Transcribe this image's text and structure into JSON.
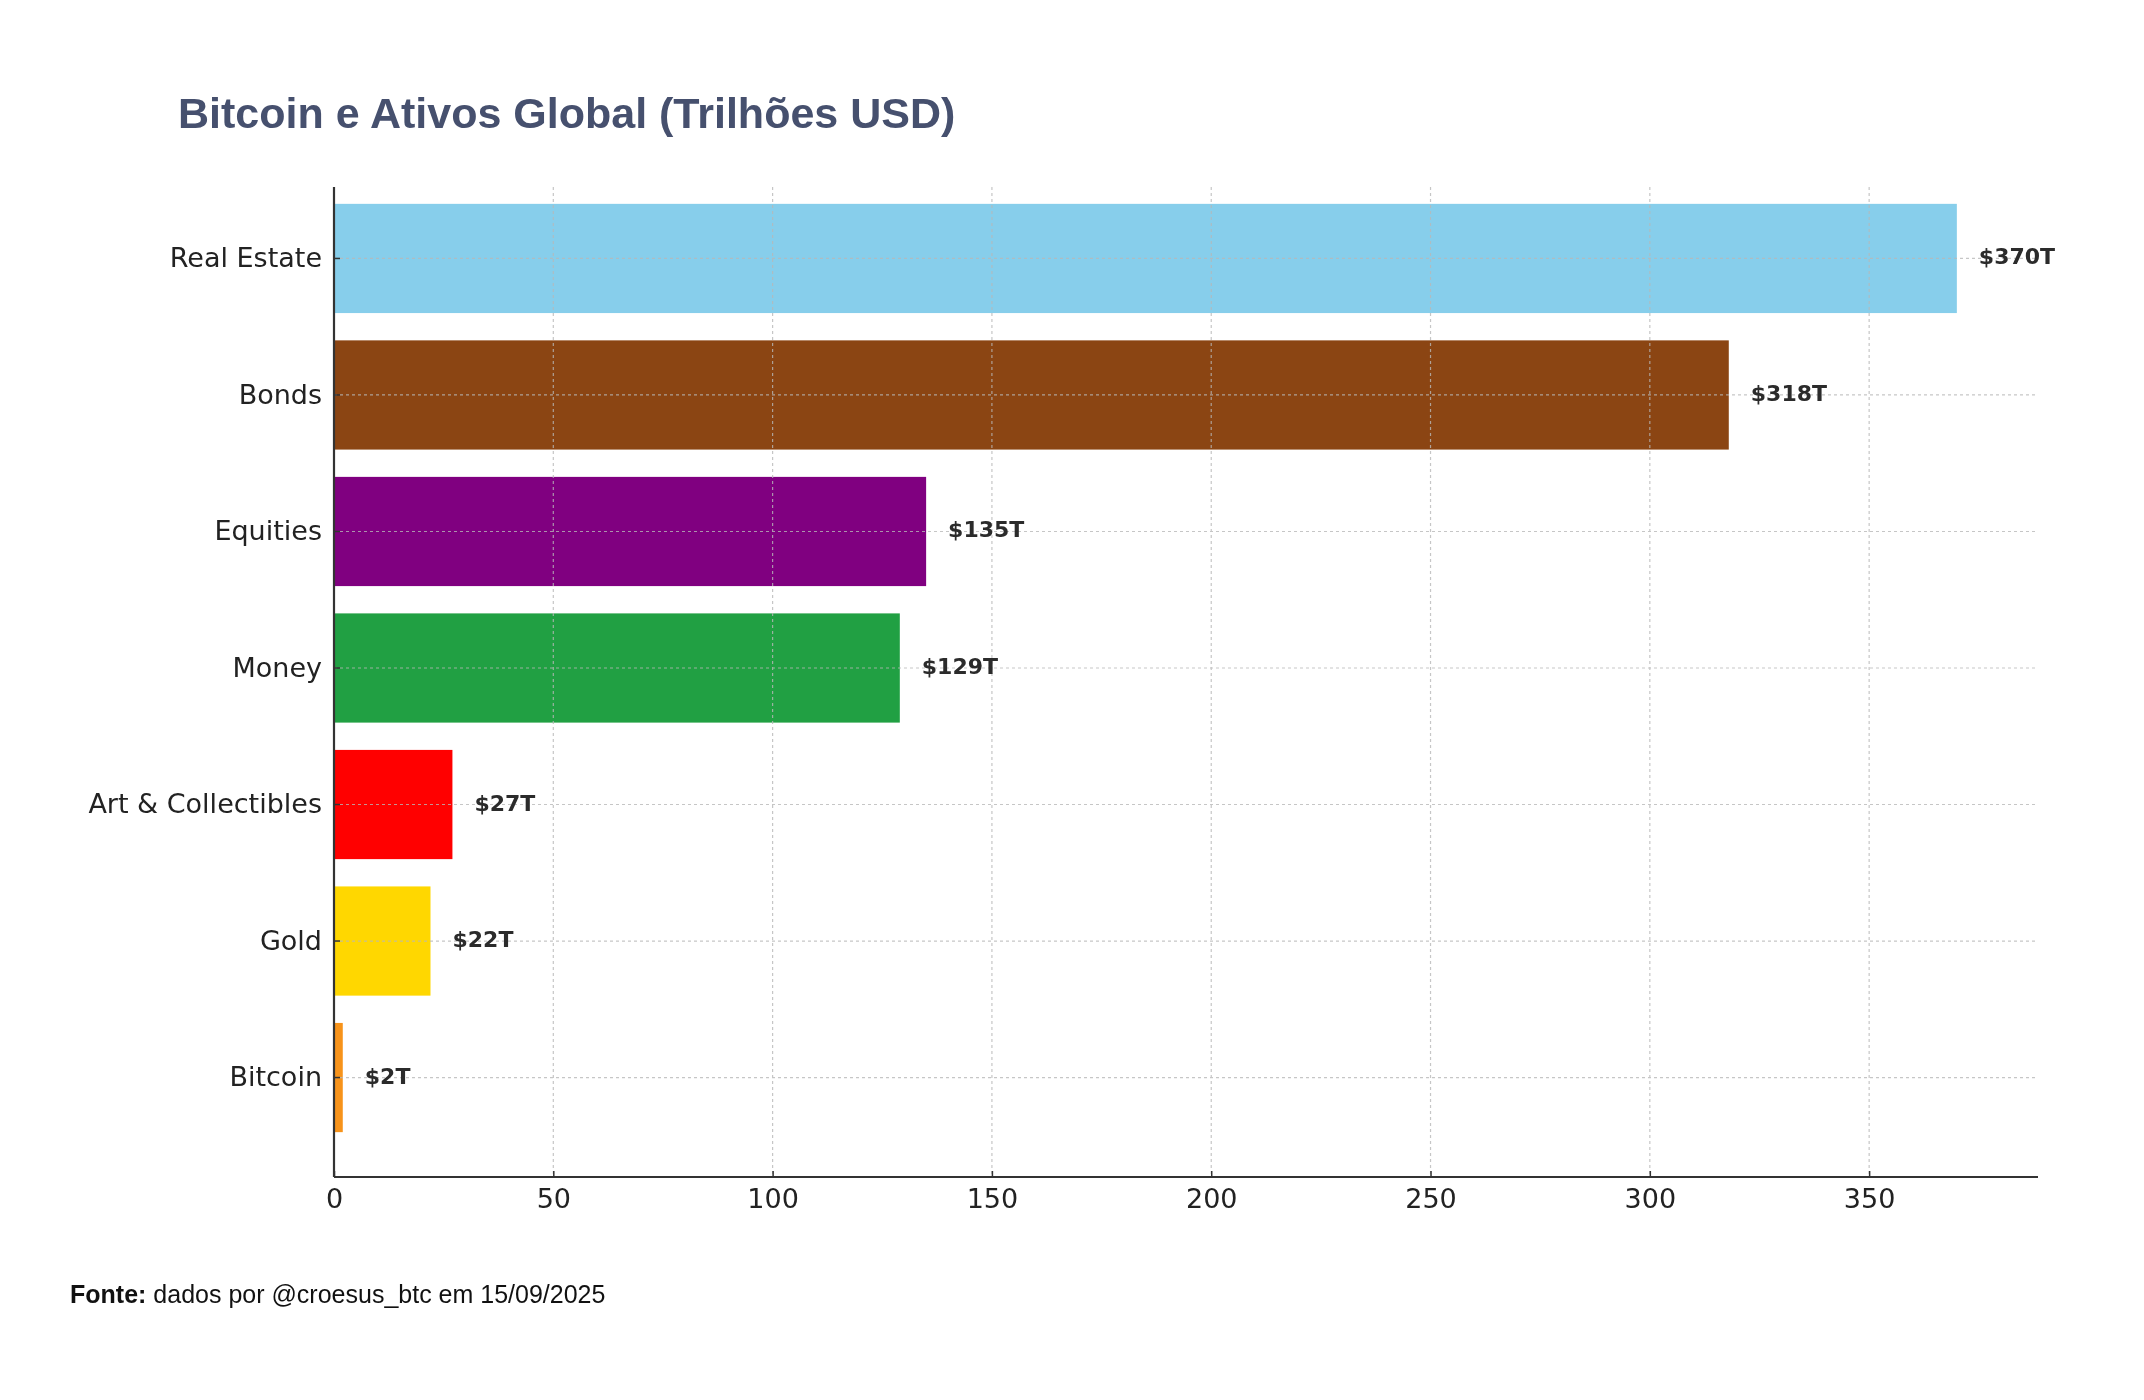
{
  "chart_data": {
    "type": "bar",
    "orientation": "horizontal",
    "title": "Bitcoin e Ativos Global (Trilhões USD)",
    "categories": [
      "Real Estate",
      "Bonds",
      "Equities",
      "Money",
      "Art & Collectibles",
      "Gold",
      "Bitcoin"
    ],
    "values": [
      370,
      318,
      135,
      129,
      27,
      22,
      2
    ],
    "colors": [
      "#87ceeb",
      "#8b4513",
      "#800080",
      "#21a043",
      "#ff0000",
      "#ffd700",
      "#f7931a"
    ],
    "value_labels": [
      "$370T",
      "$318T",
      "$135T",
      "$129T",
      "$27T",
      "$22T",
      "$2T"
    ],
    "xlim": [
      0,
      388.5
    ],
    "xticks": [
      0,
      50,
      100,
      150,
      200,
      250,
      300,
      350
    ],
    "grid": true,
    "annotations": [
      "Fonte: dados por @croesus_btc em 15/09/2025"
    ]
  }
}
